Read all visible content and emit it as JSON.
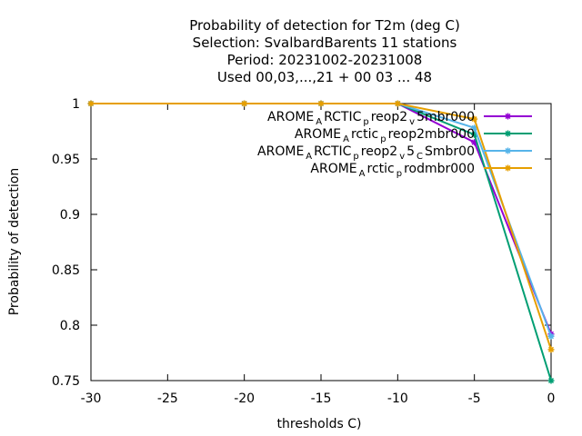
{
  "chart_data": {
    "type": "line",
    "title_lines": [
      "Probability of detection  for T2m (deg C)",
      "Selection: SvalbardBarents     11 stations",
      "Period: 20231002-20231008",
      "Used  00,03,...,21  + 00 03 ... 48"
    ],
    "xlabel": "thresholds C)",
    "ylabel": "Probability of detection",
    "xlim": [
      -30,
      0
    ],
    "ylim": [
      0.75,
      1
    ],
    "xticks": [
      -30,
      -25,
      -20,
      -15,
      -10,
      -5,
      0
    ],
    "yticks": [
      0.75,
      0.8,
      0.85,
      0.9,
      0.95,
      1
    ],
    "ytick_labels": [
      "0.75",
      "0.8",
      "0.85",
      "0.9",
      "0.95",
      "1"
    ],
    "grid": false,
    "legend_position": "top-right",
    "series": [
      {
        "name": "AROME_ARCTIC_preop2_v5mbr000",
        "legend_parts": [
          [
            "AROME",
            ""
          ],
          [
            "A",
            "sub"
          ],
          [
            "RCTIC",
            ""
          ],
          [
            "p",
            "sub"
          ],
          [
            "reop2",
            ""
          ],
          [
            "v",
            "sub"
          ],
          [
            "5mbr000",
            ""
          ]
        ],
        "color": "#9400d3",
        "x": [
          -30,
          -20,
          -15,
          -10,
          -5,
          0
        ],
        "y": [
          1.0,
          1.0,
          1.0,
          1.0,
          0.965,
          0.792
        ]
      },
      {
        "name": "AROME_Arctic_preop2mbr000",
        "legend_parts": [
          [
            "AROME",
            ""
          ],
          [
            "A",
            "sub"
          ],
          [
            "rctic",
            ""
          ],
          [
            "p",
            "sub"
          ],
          [
            "reop2mbr000",
            ""
          ]
        ],
        "color": "#009e73",
        "x": [
          -30,
          -20,
          -15,
          -10,
          -5,
          0
        ],
        "y": [
          1.0,
          1.0,
          1.0,
          1.0,
          0.972,
          0.75
        ]
      },
      {
        "name": "AROME_ARCTIC_preop2_v5_CSmbr00",
        "legend_parts": [
          [
            "AROME",
            ""
          ],
          [
            "A",
            "sub"
          ],
          [
            "RCTIC",
            ""
          ],
          [
            "p",
            "sub"
          ],
          [
            "reop2",
            ""
          ],
          [
            "v",
            "sub"
          ],
          [
            "5",
            ""
          ],
          [
            "C",
            "sub"
          ],
          [
            "Smbr00",
            ""
          ]
        ],
        "color": "#56b4e9",
        "x": [
          -30,
          -20,
          -15,
          -10,
          -5,
          0
        ],
        "y": [
          1.0,
          1.0,
          1.0,
          1.0,
          0.978,
          0.79
        ]
      },
      {
        "name": "AROME_Arctic_prodmbr000",
        "legend_parts": [
          [
            "AROME",
            ""
          ],
          [
            "A",
            "sub"
          ],
          [
            "rctic",
            ""
          ],
          [
            "p",
            "sub"
          ],
          [
            "rodmbr000",
            ""
          ]
        ],
        "color": "#e69f00",
        "x": [
          -30,
          -20,
          -15,
          -10,
          -5,
          0
        ],
        "y": [
          1.0,
          1.0,
          1.0,
          1.0,
          0.986,
          0.778
        ]
      }
    ]
  }
}
